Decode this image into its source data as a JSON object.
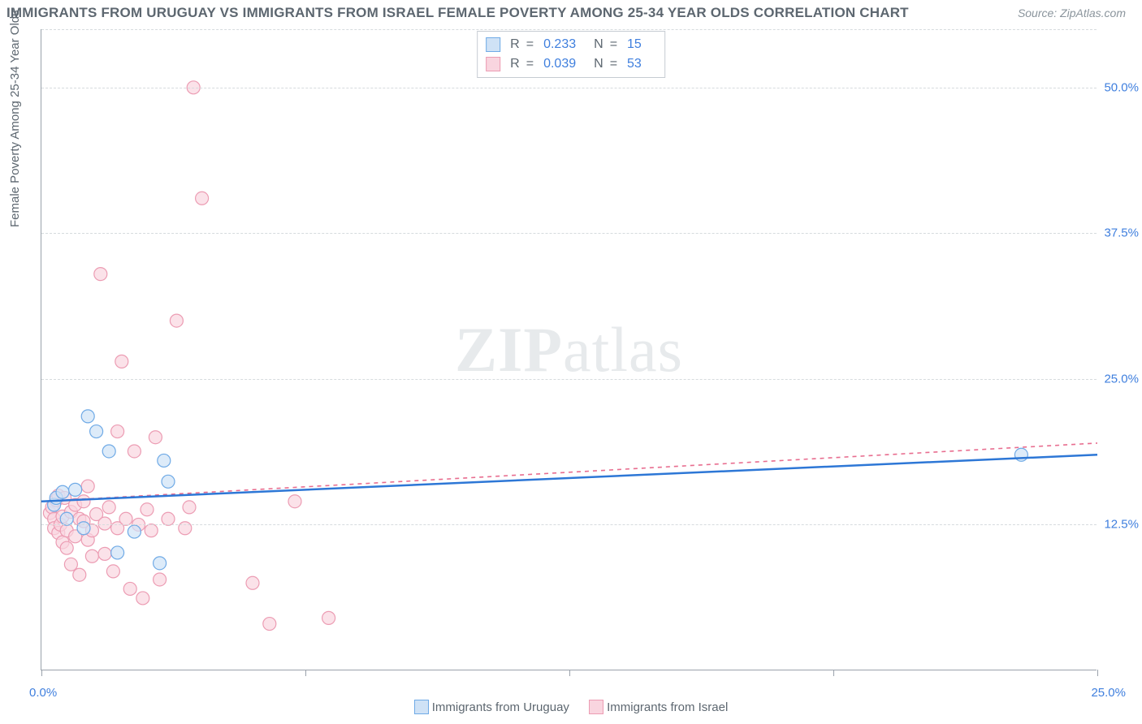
{
  "title": "IMMIGRANTS FROM URUGUAY VS IMMIGRANTS FROM ISRAEL FEMALE POVERTY AMONG 25-34 YEAR OLDS CORRELATION CHART",
  "source_label": "Source: ZipAtlas.com",
  "watermark": {
    "bold": "ZIP",
    "rest": "atlas"
  },
  "ylabel": "Female Poverty Among 25-34 Year Olds",
  "chart": {
    "type": "scatter",
    "xlim": [
      0,
      25
    ],
    "ylim": [
      0,
      55
    ],
    "xtick_positions": [
      0,
      6.25,
      12.5,
      18.75,
      25
    ],
    "xtick_labels_shown": {
      "first": "0.0%",
      "last": "25.0%"
    },
    "ytick_positions": [
      12.5,
      25.0,
      37.5,
      50.0
    ],
    "ytick_labels": [
      "12.5%",
      "25.0%",
      "37.5%",
      "50.0%"
    ],
    "background_color": "#ffffff",
    "grid_color": "#d6dbde",
    "axis_color": "#9aa2ab"
  },
  "series": [
    {
      "name": "Immigrants from Uruguay",
      "color_fill": "#cfe2f6",
      "color_stroke": "#6faae6",
      "line_color": "#2d77d6",
      "line_dash": "none",
      "marker_radius": 8,
      "R": "0.233",
      "N": "15",
      "regression": {
        "x1": 0,
        "y1": 14.5,
        "x2": 25,
        "y2": 18.5
      },
      "points": [
        [
          0.3,
          14.2
        ],
        [
          0.35,
          14.8
        ],
        [
          0.5,
          15.3
        ],
        [
          0.6,
          13.0
        ],
        [
          0.8,
          15.5
        ],
        [
          1.0,
          12.2
        ],
        [
          1.1,
          21.8
        ],
        [
          1.3,
          20.5
        ],
        [
          1.6,
          18.8
        ],
        [
          1.8,
          10.1
        ],
        [
          2.2,
          11.9
        ],
        [
          2.8,
          9.2
        ],
        [
          2.9,
          18.0
        ],
        [
          3.0,
          16.2
        ],
        [
          23.2,
          18.5
        ]
      ]
    },
    {
      "name": "Immigrants from Israel",
      "color_fill": "#f9d5df",
      "color_stroke": "#ec9cb3",
      "line_color": "#e86d8f",
      "line_dash": "5,5",
      "marker_radius": 8,
      "R": "0.039",
      "N": "53",
      "regression": {
        "x1": 0,
        "y1": 14.5,
        "x2": 25,
        "y2": 19.5
      },
      "points": [
        [
          0.2,
          13.5
        ],
        [
          0.25,
          14.0
        ],
        [
          0.3,
          13.0
        ],
        [
          0.3,
          12.2
        ],
        [
          0.35,
          14.6
        ],
        [
          0.4,
          11.8
        ],
        [
          0.4,
          15.0
        ],
        [
          0.45,
          12.5
        ],
        [
          0.5,
          13.2
        ],
        [
          0.5,
          11.0
        ],
        [
          0.55,
          14.8
        ],
        [
          0.6,
          12.0
        ],
        [
          0.6,
          10.5
        ],
        [
          0.7,
          13.6
        ],
        [
          0.7,
          9.1
        ],
        [
          0.8,
          14.2
        ],
        [
          0.8,
          11.5
        ],
        [
          0.9,
          13.0
        ],
        [
          0.9,
          8.2
        ],
        [
          1.0,
          12.8
        ],
        [
          1.0,
          14.5
        ],
        [
          1.1,
          11.2
        ],
        [
          1.1,
          15.8
        ],
        [
          1.2,
          12.0
        ],
        [
          1.2,
          9.8
        ],
        [
          1.3,
          13.4
        ],
        [
          1.4,
          34.0
        ],
        [
          1.5,
          10.0
        ],
        [
          1.5,
          12.6
        ],
        [
          1.6,
          14.0
        ],
        [
          1.7,
          8.5
        ],
        [
          1.8,
          20.5
        ],
        [
          1.8,
          12.2
        ],
        [
          1.9,
          26.5
        ],
        [
          2.0,
          13.0
        ],
        [
          2.1,
          7.0
        ],
        [
          2.2,
          18.8
        ],
        [
          2.3,
          12.5
        ],
        [
          2.4,
          6.2
        ],
        [
          2.5,
          13.8
        ],
        [
          2.6,
          12.0
        ],
        [
          2.7,
          20.0
        ],
        [
          2.8,
          7.8
        ],
        [
          3.0,
          13.0
        ],
        [
          3.2,
          30.0
        ],
        [
          3.4,
          12.2
        ],
        [
          3.5,
          14.0
        ],
        [
          3.6,
          50.0
        ],
        [
          3.8,
          40.5
        ],
        [
          5.0,
          7.5
        ],
        [
          5.4,
          4.0
        ],
        [
          6.0,
          14.5
        ],
        [
          6.8,
          4.5
        ]
      ]
    }
  ],
  "stats_legend_labels": {
    "R": "R",
    "eq": "=",
    "N": "N"
  },
  "bottom_legend_label_0": "Immigrants from Uruguay",
  "bottom_legend_label_1": "Immigrants from Israel"
}
